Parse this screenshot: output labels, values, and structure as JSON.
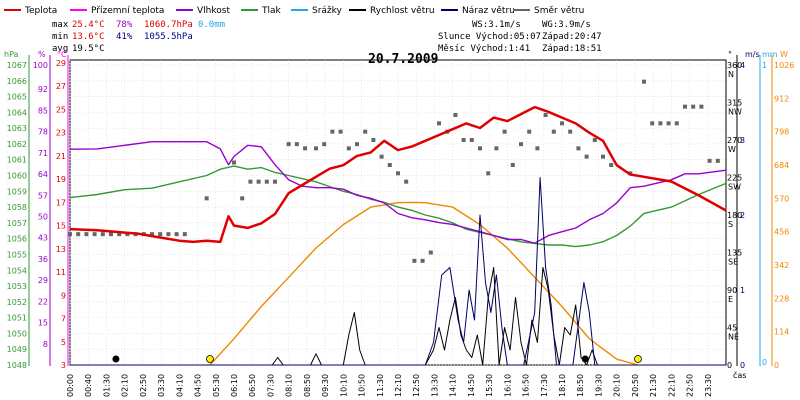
{
  "chart_data": {
    "type": "line",
    "title": "20.7.2009",
    "legend": [
      {
        "key": "teplota",
        "label": "Teplota",
        "color": "#e00000"
      },
      {
        "key": "prizemni",
        "label": "Přízemní teplota",
        "color": "#ff00ff"
      },
      {
        "key": "vlhkost",
        "label": "Vlhkost",
        "color": "#9900cc"
      },
      {
        "key": "tlak",
        "label": "Tlak",
        "color": "#339933"
      },
      {
        "key": "srazky",
        "label": "Srážky",
        "color": "#22aaee"
      },
      {
        "key": "rychlost",
        "label": "Rychlost větru",
        "color": "#000000"
      },
      {
        "key": "naraz",
        "label": "Náraz větru",
        "color": "#000066"
      },
      {
        "key": "smer",
        "label": "Směr větru",
        "color": "#666666"
      }
    ],
    "stats": {
      "max_label": "max",
      "max_temp": "25.4°C",
      "max_hum": "78%",
      "max_press": "1060.7hPa",
      "max_rain": "0.0mm",
      "min_label": "min",
      "min_temp": "13.6°C",
      "min_hum": "41%",
      "min_press": "1055.5hPa",
      "avg_label": "avg",
      "avg_temp": "19.5°C",
      "ws": "WS:3.1m/s",
      "wg": "WG:3.9m/s",
      "sun_rise": "Slunce Východ:05:07",
      "sun_set": "Západ:20:47",
      "moon_rise": "Měsíc  Východ:1:41",
      "moon_set": "Západ:18:51"
    },
    "axes": {
      "hpa_label": "hPa",
      "hpa_ticks": [
        "1067",
        "1066",
        "1065",
        "1064",
        "1063",
        "1062",
        "1061",
        "1060",
        "1059",
        "1058",
        "1057",
        "1056",
        "1055",
        "1054",
        "1053",
        "1052",
        "1051",
        "1050",
        "1049",
        "1048"
      ],
      "pct_label": "%",
      "pct_ticks": [
        "100",
        "92",
        "85",
        "78",
        "71",
        "64",
        "57",
        "50",
        "43",
        "36",
        "29",
        "22",
        "15",
        "8"
      ],
      "c_label": "°C",
      "c_ticks": [
        "29",
        "27",
        "25",
        "23",
        "21",
        "19",
        "17",
        "15",
        "13",
        "11",
        "9",
        "7",
        "5",
        "3"
      ],
      "dir_label": "°",
      "dir_ticks": [
        "360",
        "315",
        "270",
        "225",
        "180",
        "135",
        "90",
        "45",
        "0"
      ],
      "dir_names": [
        "N",
        "NW",
        "W",
        "SW",
        "S",
        "SE",
        "E",
        "NE"
      ],
      "ms_label": "m/s",
      "ms_ticks": [
        "4",
        "3",
        "2",
        "1",
        "0"
      ],
      "mm_label": "mm",
      "mm_ticks": [
        "1",
        "0"
      ],
      "w_label": "W",
      "w_ticks": [
        "1026",
        "912",
        "798",
        "684",
        "570",
        "456",
        "342",
        "228",
        "114",
        "0"
      ],
      "x_ticks": [
        "00:00",
        "00:40",
        "01:30",
        "02:10",
        "02:50",
        "03:30",
        "04:10",
        "04:50",
        "05:30",
        "06:10",
        "06:50",
        "07:30",
        "08:10",
        "08:50",
        "09:30",
        "10:10",
        "10:50",
        "11:30",
        "12:10",
        "12:50",
        "13:30",
        "14:10",
        "14:50",
        "15:30",
        "16:10",
        "16:50",
        "17:30",
        "18:10",
        "18:50",
        "19:30",
        "20:10",
        "20:50",
        "21:30",
        "22:10",
        "22:50",
        "23:30"
      ],
      "x_label": "čas"
    },
    "series": [
      {
        "name": "Teplota",
        "unit": "°C",
        "color": "#e00000",
        "x": [
          0,
          1,
          2,
          2.5,
          3,
          4,
          4.5,
          5,
          5.5,
          5.8,
          6,
          6.5,
          7,
          7.5,
          8,
          8.5,
          9,
          9.5,
          10,
          10.5,
          11,
          11.5,
          12,
          12.5,
          13,
          13.5,
          14,
          14.5,
          15,
          15.5,
          16,
          16.5,
          17,
          17.5,
          18,
          18.5,
          19,
          19.5,
          20,
          20.5,
          21,
          22,
          23,
          24
        ],
        "y": [
          14.7,
          14.6,
          14.4,
          14.3,
          14.1,
          13.7,
          13.6,
          13.7,
          13.6,
          15.8,
          15.0,
          14.8,
          15.2,
          16.0,
          17.8,
          18.5,
          19.2,
          19.9,
          20.2,
          21.0,
          21.3,
          22.3,
          21.5,
          21.8,
          22.3,
          22.8,
          23.3,
          23.8,
          23.4,
          24.3,
          24.0,
          24.6,
          25.2,
          24.8,
          24.3,
          23.8,
          23.0,
          22.3,
          20.2,
          19.4,
          19.2,
          18.8,
          17.6,
          16.3
        ]
      },
      {
        "name": "Vlhkost",
        "unit": "%",
        "color": "#9900cc",
        "x": [
          0,
          1,
          2,
          3,
          4,
          5,
          5.5,
          5.8,
          6,
          6.5,
          7,
          7.5,
          8,
          8.5,
          9,
          9.5,
          10,
          10.5,
          11,
          11.5,
          12,
          12.5,
          13,
          13.5,
          14,
          14.5,
          15,
          15.5,
          16,
          16.5,
          17,
          17.5,
          18,
          18.5,
          19,
          19.5,
          20,
          20.5,
          21,
          22,
          22.5,
          23,
          24
        ],
        "y": [
          72.2,
          72.3,
          73.5,
          74.7,
          74.7,
          74.7,
          72.3,
          67.1,
          69.8,
          73.5,
          73.0,
          67.1,
          62.1,
          60.0,
          59.5,
          59.5,
          59.0,
          57.0,
          56.0,
          54.5,
          51.0,
          49.6,
          48.9,
          48.0,
          47.4,
          46.2,
          45.0,
          43.7,
          42.4,
          42.4,
          41.2,
          43.7,
          45.0,
          46.2,
          48.9,
          51.0,
          54.5,
          59.5,
          60.0,
          62.1,
          64.1,
          64.1,
          65.3
        ]
      },
      {
        "name": "Tlak",
        "unit": "hPa",
        "color": "#339933",
        "x": [
          0,
          1,
          2,
          3,
          4,
          5,
          5.5,
          6,
          6.5,
          7,
          7.5,
          8,
          8.5,
          9,
          9.5,
          10,
          10.5,
          11,
          11.5,
          12,
          12.5,
          13,
          13.5,
          14,
          14.5,
          15,
          15.5,
          16,
          16.5,
          17,
          17.5,
          18,
          18.5,
          19,
          19.5,
          20,
          20.5,
          21,
          22,
          23,
          24
        ],
        "y": [
          1058.6,
          1058.8,
          1059.1,
          1059.2,
          1059.6,
          1060.0,
          1060.4,
          1060.6,
          1060.4,
          1060.5,
          1060.2,
          1060.0,
          1059.8,
          1059.6,
          1059.3,
          1059.0,
          1058.8,
          1058.5,
          1058.3,
          1058.0,
          1057.8,
          1057.5,
          1057.3,
          1057.0,
          1056.6,
          1056.4,
          1056.2,
          1056.0,
          1055.8,
          1055.7,
          1055.6,
          1055.6,
          1055.5,
          1055.6,
          1055.8,
          1056.2,
          1056.8,
          1057.6,
          1058.0,
          1058.8,
          1059.5
        ]
      },
      {
        "name": "Směr větru",
        "unit": "°",
        "color": "#666666",
        "x": [
          0,
          0.3,
          0.6,
          0.9,
          1.2,
          1.5,
          1.8,
          2.1,
          2.4,
          2.7,
          3.0,
          3.3,
          3.6,
          3.9,
          4.2,
          5.0,
          6.0,
          6.3,
          6.6,
          6.9,
          7.2,
          7.5,
          8.0,
          8.3,
          8.6,
          9.0,
          9.3,
          9.6,
          9.9,
          10.2,
          10.5,
          10.8,
          11.1,
          11.4,
          11.7,
          12.0,
          12.3,
          12.6,
          12.9,
          13.2,
          13.5,
          13.8,
          14.1,
          14.4,
          14.7,
          15.0,
          15.3,
          15.6,
          15.9,
          16.2,
          16.5,
          16.8,
          17.1,
          17.4,
          17.7,
          18.0,
          18.3,
          18.6,
          18.9,
          19.2,
          19.5,
          19.8,
          20.5,
          21.0,
          21.3,
          21.6,
          21.9,
          22.2,
          22.5,
          22.8,
          23.1,
          23.4,
          23.7
        ],
        "y": [
          157,
          157,
          157,
          157,
          157,
          157,
          157,
          157,
          157,
          157,
          157,
          157,
          157,
          157,
          157,
          200,
          243,
          200,
          220,
          220,
          220,
          220,
          265,
          265,
          260,
          260,
          265,
          280,
          280,
          260,
          265,
          280,
          270,
          250,
          240,
          230,
          220,
          125,
          125,
          135,
          290,
          280,
          300,
          270,
          270,
          260,
          230,
          260,
          280,
          240,
          265,
          280,
          260,
          300,
          280,
          290,
          280,
          260,
          250,
          270,
          250,
          240,
          230,
          340,
          290,
          290,
          290,
          290,
          310,
          310,
          310,
          245,
          245
        ]
      },
      {
        "name": "Rychlost větru",
        "unit": "m/s",
        "color": "#000000",
        "x": [
          0,
          7.4,
          7.6,
          7.8,
          8.0,
          8.8,
          9.0,
          9.2,
          9.4,
          10.0,
          10.2,
          10.4,
          10.6,
          10.8,
          11.0,
          13.0,
          13.3,
          13.5,
          13.7,
          13.9,
          14.1,
          14.3,
          14.5,
          14.7,
          14.9,
          15.1,
          15.3,
          15.5,
          15.7,
          15.9,
          16.1,
          16.3,
          16.5,
          16.7,
          16.9,
          17.1,
          17.3,
          17.5,
          17.7,
          17.9,
          18.1,
          18.3,
          18.5,
          18.7,
          18.9,
          19.1,
          19.3,
          19.5,
          24
        ],
        "y": [
          0,
          0,
          0.1,
          0,
          0,
          0,
          0.15,
          0,
          0,
          0,
          0.4,
          0.7,
          0.2,
          0,
          0,
          0,
          0.2,
          0.5,
          0.2,
          0.6,
          0.9,
          0.4,
          0.2,
          0.1,
          0.4,
          0,
          0.9,
          1.3,
          0,
          0.5,
          0.2,
          0.9,
          0.3,
          0,
          0.6,
          0.3,
          1.3,
          1.0,
          0.4,
          0,
          0.5,
          0.4,
          0.8,
          0.1,
          0,
          0.2,
          0,
          0,
          0
        ]
      },
      {
        "name": "Náraz větru",
        "unit": "m/s",
        "color": "#000066",
        "x": [
          0,
          13.0,
          13.3,
          13.6,
          13.9,
          14.2,
          14.4,
          14.6,
          14.8,
          15.0,
          15.2,
          15.4,
          15.6,
          15.8,
          16.0,
          16.3,
          16.6,
          17.0,
          17.2,
          17.4,
          17.6,
          17.8,
          18.0,
          18.4,
          18.8,
          19.0,
          19.2,
          19.5,
          24
        ],
        "y": [
          0,
          0,
          0.3,
          1.2,
          1.3,
          0.6,
          0.3,
          1.0,
          0.6,
          2.0,
          1.1,
          0.7,
          1.2,
          0.5,
          0,
          0,
          0,
          0.7,
          2.5,
          1.3,
          0.8,
          0,
          0,
          0,
          1.1,
          0.7,
          0,
          0,
          0
        ]
      },
      {
        "name": "Sluneční záření",
        "unit": "W",
        "color": "#ee8800",
        "x": [
          5.12,
          6,
          7,
          8,
          9,
          10,
          11,
          12,
          12.5,
          13,
          14,
          15,
          16,
          17,
          18,
          19,
          20,
          20.78
        ],
        "y": [
          0,
          90,
          200,
          300,
          400,
          480,
          540,
          555,
          556,
          555,
          540,
          480,
          400,
          300,
          200,
          90,
          20,
          0
        ]
      }
    ]
  }
}
